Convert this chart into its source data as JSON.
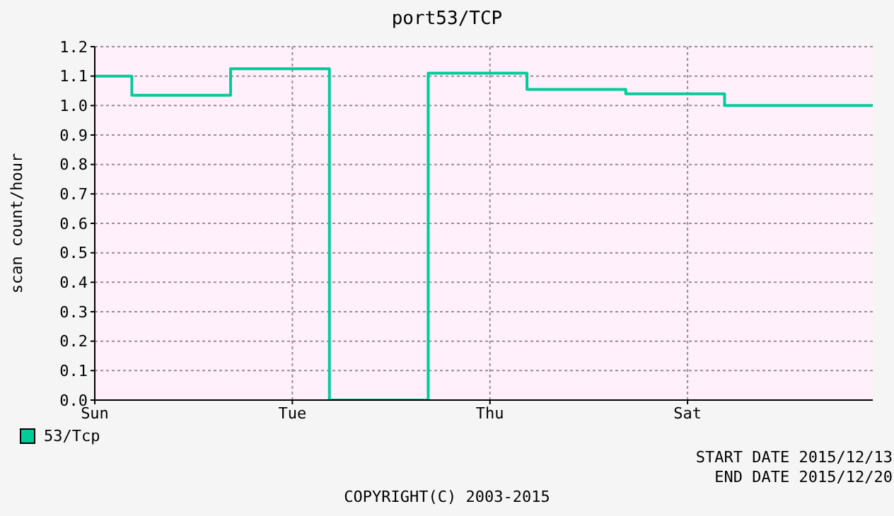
{
  "chart_data": {
    "type": "step",
    "title": "port53/TCP",
    "ylabel": "scan count/hour",
    "categories": [
      "Sun",
      null,
      null,
      null,
      null,
      null,
      null,
      null,
      null,
      null,
      null,
      null,
      null,
      null,
      null,
      null,
      "Tue",
      null,
      null,
      null,
      null,
      null,
      null,
      null,
      null,
      null,
      null,
      null,
      null,
      null,
      null,
      null,
      "Thu",
      null,
      null,
      null,
      null,
      null,
      null,
      null,
      null,
      null,
      null,
      null,
      null,
      null,
      null,
      null,
      "Sat",
      null,
      null,
      null,
      null,
      null,
      null,
      null,
      null,
      null,
      null,
      null,
      null,
      null,
      null,
      null
    ],
    "series": [
      {
        "name": "53/Tcp",
        "color": "#00cc99",
        "values": [
          1.1,
          1.1,
          1.1,
          1.035,
          1.035,
          1.035,
          1.035,
          1.035,
          1.035,
          1.035,
          1.035,
          1.125,
          1.125,
          1.125,
          1.125,
          1.125,
          1.125,
          1.125,
          1.125,
          0,
          0,
          0,
          0,
          0,
          0,
          0,
          0,
          1.11,
          1.11,
          1.11,
          1.11,
          1.11,
          1.11,
          1.11,
          1.11,
          1.055,
          1.055,
          1.055,
          1.055,
          1.055,
          1.055,
          1.055,
          1.055,
          1.04,
          1.04,
          1.04,
          1.04,
          1.04,
          1.04,
          1.04,
          1.04,
          1.0,
          1.0,
          1.0,
          1.0,
          1.0,
          1.0,
          1.0,
          1.0,
          1.0,
          1.0,
          1.0,
          1.0,
          1.0
        ]
      }
    ],
    "ylim": [
      0,
      1.2
    ],
    "yticks": [
      {
        "value": 0,
        "label": "0.0"
      },
      0.1,
      0.2,
      0.3,
      0.4,
      0.5,
      0.6,
      0.7,
      0.8,
      0.9,
      {
        "value": 1,
        "label": "1.0"
      },
      1.1,
      1.2
    ],
    "grid": true,
    "legend": "bottom left",
    "annotations": [
      "START DATE 2015/12/13",
      "END DATE 2015/12/20",
      "COPYRIGHT(C) 2003-2015"
    ]
  }
}
